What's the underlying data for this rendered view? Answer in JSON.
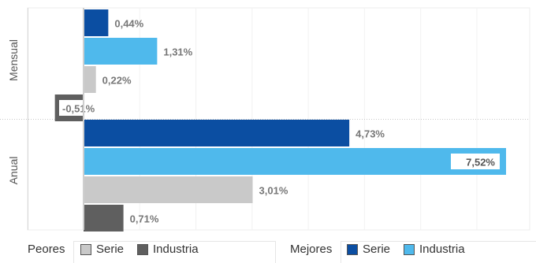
{
  "chart_data": {
    "type": "bar",
    "orientation": "horizontal",
    "groups": [
      {
        "name": "Mensual",
        "bars": [
          {
            "series": "Mejores Serie",
            "value": 0.44,
            "label": "0,44%"
          },
          {
            "series": "Mejores Industria",
            "value": 1.31,
            "label": "1,31%"
          },
          {
            "series": "Peores Serie",
            "value": 0.22,
            "label": "0,22%"
          },
          {
            "series": "Peores Industria",
            "value": -0.51,
            "label": "-0,51%"
          }
        ]
      },
      {
        "name": "Anual",
        "bars": [
          {
            "series": "Mejores Serie",
            "value": 4.73,
            "label": "4,73%"
          },
          {
            "series": "Mejores Industria",
            "value": 7.52,
            "label": "7,52%"
          },
          {
            "series": "Peores Serie",
            "value": 3.01,
            "label": "3,01%"
          },
          {
            "series": "Peores Industria",
            "value": 0.71,
            "label": "0,71%"
          }
        ]
      }
    ],
    "xlim": [
      -0.51,
      7.52
    ],
    "grid": true,
    "colors": {
      "Mejores Serie": "#0b4ea2",
      "Mejores Industria": "#4fb9ec",
      "Peores Serie": "#c9c9c9",
      "Peores Industria": "#5f5f5f"
    },
    "legend": {
      "position": "bottom",
      "groups": [
        {
          "title": "Peores",
          "items": [
            {
              "label": "Serie",
              "color": "#c9c9c9"
            },
            {
              "label": "Industria",
              "color": "#5f5f5f"
            }
          ]
        },
        {
          "title": "Mejores",
          "items": [
            {
              "label": "Serie",
              "color": "#0b4ea2"
            },
            {
              "label": "Industria",
              "color": "#4fb9ec"
            }
          ]
        }
      ]
    }
  }
}
